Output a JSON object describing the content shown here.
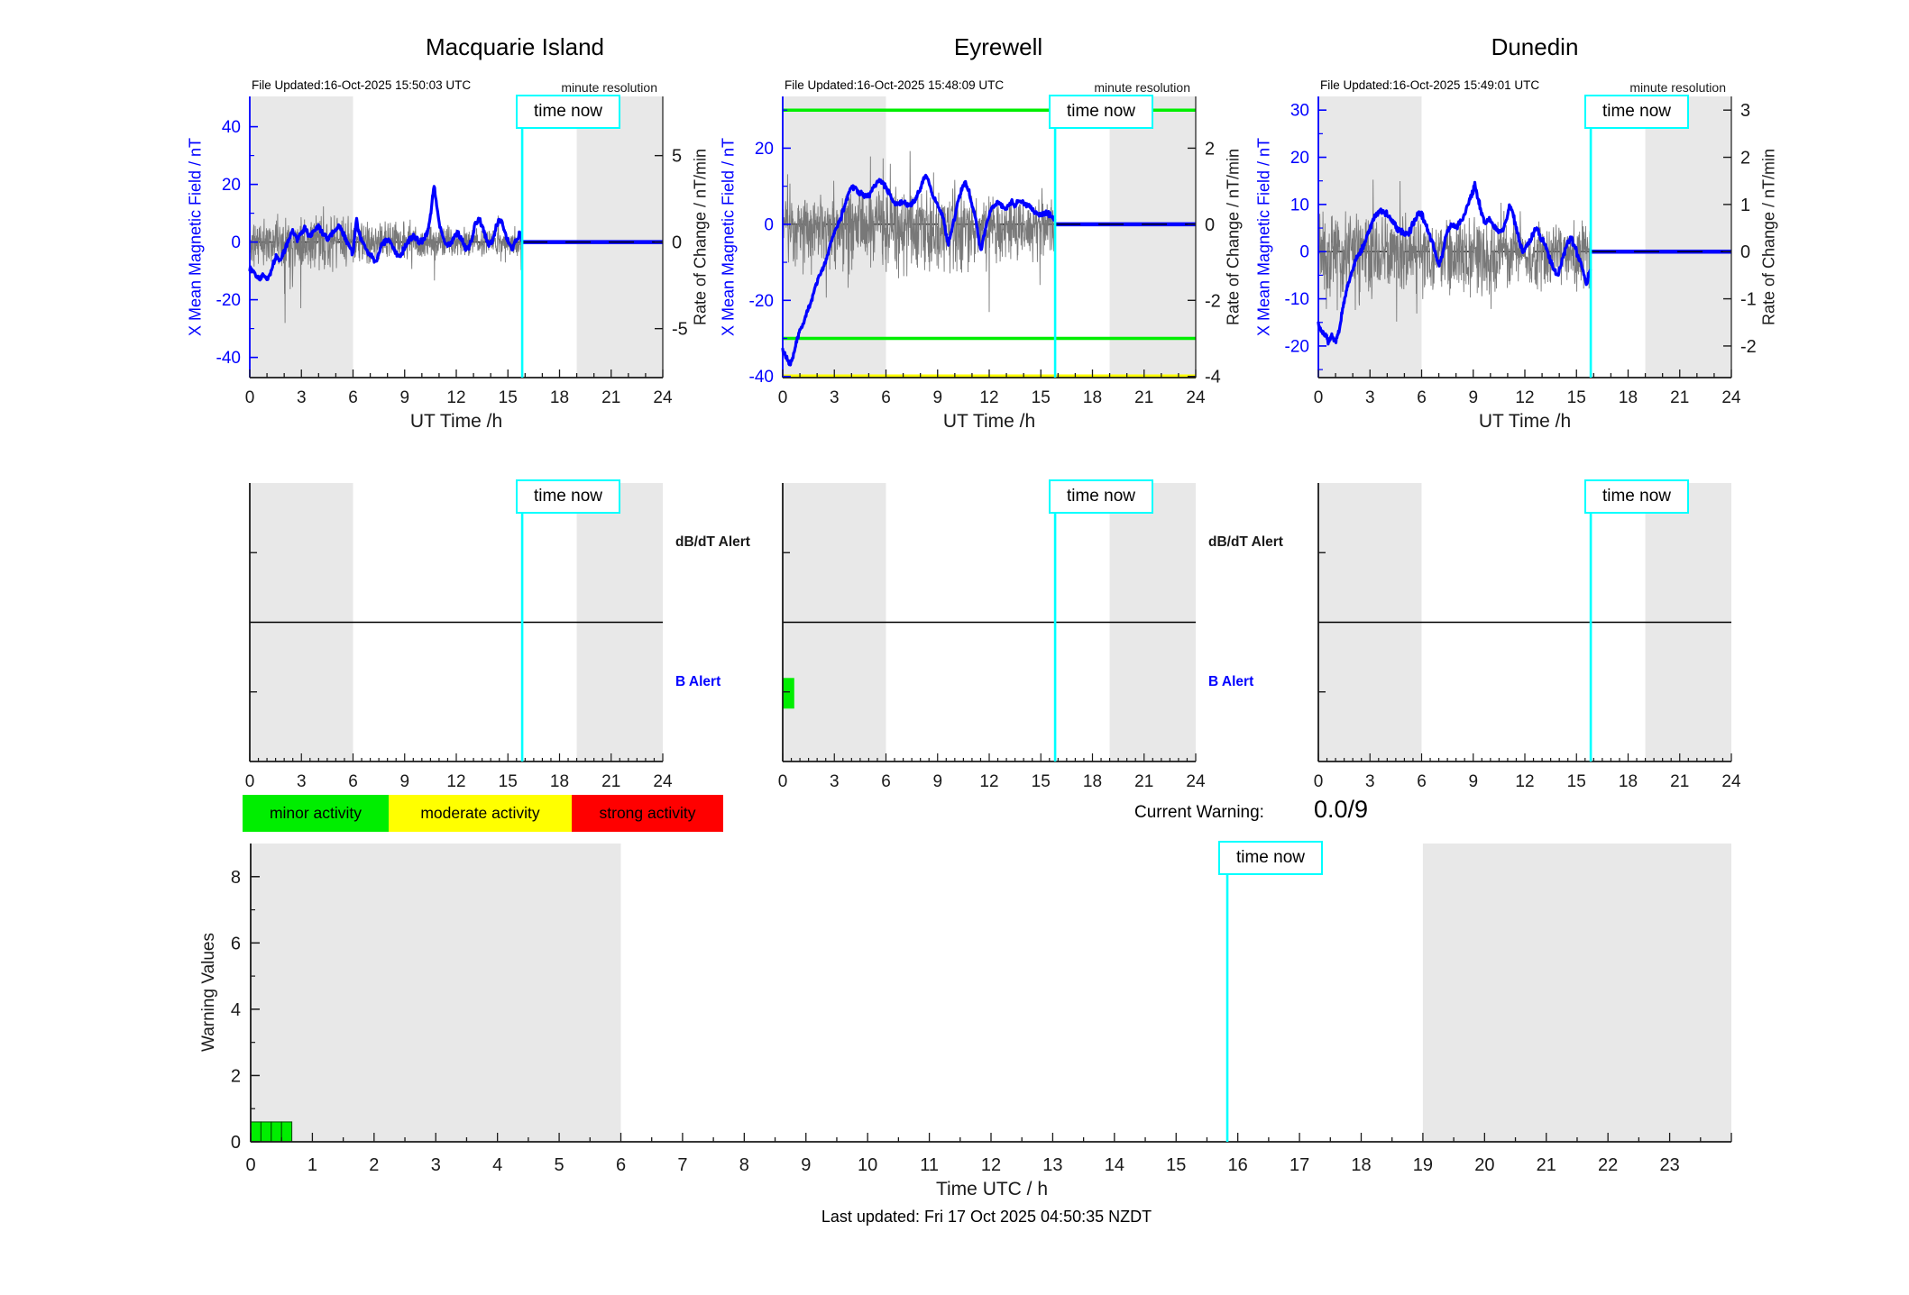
{
  "figure": {
    "time_now_label": "time now",
    "footer": "Last updated: Fri 17 Oct 2025 04:50:35 NZDT",
    "current_warning": {
      "label": "Current Warning:",
      "value": "0.0/9"
    },
    "alert_row": {
      "dbdt_label": "dB/dT Alert",
      "b_label": "B Alert"
    },
    "legend": {
      "items": [
        {
          "label": "minor activity",
          "color": "#00ee00"
        },
        {
          "label": "moderate activity",
          "color": "#ffff00"
        },
        {
          "label": "strong activity",
          "color": "#ff0000"
        }
      ]
    },
    "colors": {
      "night_band": "#e8e8e8",
      "mean_line": "#0000ff",
      "noise_line": "#787878",
      "time_now": "#00ffff",
      "minor": "#00ee00",
      "moderate": "#ffff00",
      "strong": "#ff0000"
    }
  },
  "chart_data": [
    {
      "type": "line",
      "station": "Macquarie Island",
      "title": "Macquarie Island",
      "file_updated": "File Updated:16-Oct-2025 15:50:03 UTC",
      "resolution_label": "minute resolution",
      "xlabel": "UT Time /h",
      "ylabel_left": "X Mean Magnetic Field / nT",
      "ylabel_right": "Rate of Change / nT/min",
      "xlim": [
        0,
        24
      ],
      "xticks": [
        0,
        3,
        6,
        9,
        12,
        15,
        18,
        21,
        24
      ],
      "ylim_left": [
        -47,
        50.5
      ],
      "yticks_left": [
        40,
        20,
        0,
        -20,
        -40
      ],
      "ylim_right": [
        -7.83,
        8.42
      ],
      "yticks_right": [
        5,
        0,
        -5
      ],
      "time_now": 15.83,
      "night_bands": [
        [
          0,
          6
        ],
        [
          19,
          24
        ]
      ],
      "thresholds": [],
      "forecast_value": 0,
      "mean_field_points": [
        [
          0,
          -9
        ],
        [
          0.3,
          -11
        ],
        [
          0.55,
          -12.5
        ],
        [
          0.8,
          -11
        ],
        [
          1.05,
          -13
        ],
        [
          1.3,
          -9
        ],
        [
          1.55,
          -4.5
        ],
        [
          1.75,
          -6.5
        ],
        [
          2,
          -3
        ],
        [
          2.25,
          1
        ],
        [
          2.5,
          4
        ],
        [
          2.75,
          1
        ],
        [
          3,
          3
        ],
        [
          3.2,
          5
        ],
        [
          3.5,
          2
        ],
        [
          3.75,
          4
        ],
        [
          4,
          5
        ],
        [
          4.3,
          3
        ],
        [
          4.5,
          1
        ],
        [
          4.75,
          3
        ],
        [
          5,
          4
        ],
        [
          5.2,
          6
        ],
        [
          5.4,
          3
        ],
        [
          5.6,
          1
        ],
        [
          5.8,
          -2
        ],
        [
          6,
          -4
        ],
        [
          6.1,
          2
        ],
        [
          6.2,
          8
        ],
        [
          6.35,
          3
        ],
        [
          6.5,
          1
        ],
        [
          6.7,
          -2
        ],
        [
          6.9,
          -4
        ],
        [
          7.1,
          -5
        ],
        [
          7.3,
          -7
        ],
        [
          7.5,
          -4
        ],
        [
          7.7,
          -1
        ],
        [
          7.9,
          0.5
        ],
        [
          8.1,
          1
        ],
        [
          8.3,
          -1
        ],
        [
          8.5,
          -4
        ],
        [
          8.7,
          -5
        ],
        [
          8.9,
          -3
        ],
        [
          9.1,
          -1
        ],
        [
          9.3,
          1
        ],
        [
          9.5,
          2
        ],
        [
          9.7,
          1
        ],
        [
          9.9,
          0
        ],
        [
          10.1,
          1
        ],
        [
          10.3,
          3
        ],
        [
          10.5,
          9
        ],
        [
          10.65,
          17
        ],
        [
          10.72,
          20
        ],
        [
          10.85,
          13
        ],
        [
          11,
          7
        ],
        [
          11.15,
          3
        ],
        [
          11.3,
          0
        ],
        [
          11.5,
          -1
        ],
        [
          11.7,
          0
        ],
        [
          11.9,
          2
        ],
        [
          12.1,
          3
        ],
        [
          12.3,
          1
        ],
        [
          12.5,
          -2
        ],
        [
          12.7,
          -2
        ],
        [
          12.9,
          1
        ],
        [
          13.1,
          6
        ],
        [
          13.3,
          8
        ],
        [
          13.5,
          6
        ],
        [
          13.7,
          2
        ],
        [
          13.9,
          -1
        ],
        [
          14.1,
          0
        ],
        [
          14.3,
          5
        ],
        [
          14.5,
          8
        ],
        [
          14.7,
          6
        ],
        [
          14.9,
          2
        ],
        [
          15.1,
          -1
        ],
        [
          15.3,
          -2
        ],
        [
          15.5,
          1
        ],
        [
          15.7,
          3
        ],
        [
          15.83,
          0
        ]
      ],
      "mean_jitter": 1.2,
      "noise": {
        "seed": 11,
        "spike_p": 0.05,
        "spike_mult": 2.6,
        "neg_gain": 1.05,
        "segments": [
          [
            0,
            2,
            1.5
          ],
          [
            2,
            6,
            1.8
          ],
          [
            6,
            9,
            1.3
          ],
          [
            9,
            13,
            1.05
          ],
          [
            13,
            15.83,
            0.85
          ]
        ]
      }
    },
    {
      "type": "line",
      "station": "Eyrewell",
      "title": "Eyrewell",
      "file_updated": "File Updated:16-Oct-2025 15:48:09 UTC",
      "resolution_label": "minute resolution",
      "xlabel": "UT Time /h",
      "ylabel_left": "X Mean Magnetic Field / nT",
      "ylabel_right": "Rate of Change / nT/min",
      "xlim": [
        0,
        24
      ],
      "xticks": [
        0,
        3,
        6,
        9,
        12,
        15,
        18,
        21,
        24
      ],
      "ylim_left": [
        -40.3,
        33.6
      ],
      "yticks_left": [
        20,
        0,
        -20,
        -40
      ],
      "ylim_right": [
        -4.03,
        3.36
      ],
      "yticks_right": [
        2,
        0,
        -2,
        -4
      ],
      "time_now": 15.83,
      "night_bands": [
        [
          0,
          6
        ],
        [
          19,
          24
        ]
      ],
      "thresholds": [
        {
          "value": 30,
          "color": "#00ee00",
          "width": 3.5
        },
        {
          "value": -30,
          "color": "#00ee00",
          "width": 3.5
        },
        {
          "value": -40,
          "color": "#ffff00",
          "width": 4.5
        }
      ],
      "forecast_value": 0,
      "mean_field_points": [
        [
          0,
          -33
        ],
        [
          0.2,
          -35
        ],
        [
          0.4,
          -37
        ],
        [
          0.6,
          -35
        ],
        [
          0.8,
          -31
        ],
        [
          1,
          -28
        ],
        [
          1.2,
          -26
        ],
        [
          1.4,
          -23
        ],
        [
          1.6,
          -21
        ],
        [
          1.8,
          -18
        ],
        [
          2,
          -15
        ],
        [
          2.2,
          -13
        ],
        [
          2.4,
          -11
        ],
        [
          2.6,
          -8
        ],
        [
          2.8,
          -5
        ],
        [
          3,
          -2
        ],
        [
          3.2,
          0
        ],
        [
          3.4,
          2
        ],
        [
          3.6,
          5
        ],
        [
          3.8,
          8
        ],
        [
          4,
          10
        ],
        [
          4.2,
          9.5
        ],
        [
          4.4,
          8.5
        ],
        [
          4.6,
          8
        ],
        [
          4.8,
          7.5
        ],
        [
          5,
          7.5
        ],
        [
          5.2,
          9
        ],
        [
          5.4,
          10.5
        ],
        [
          5.6,
          11.5
        ],
        [
          5.8,
          11
        ],
        [
          6,
          9.5
        ],
        [
          6.2,
          8
        ],
        [
          6.4,
          6
        ],
        [
          6.6,
          5
        ],
        [
          6.8,
          5.5
        ],
        [
          7,
          6
        ],
        [
          7.2,
          5.5
        ],
        [
          7.4,
          5
        ],
        [
          7.6,
          6
        ],
        [
          7.8,
          7.5
        ],
        [
          8,
          9.5
        ],
        [
          8.2,
          12
        ],
        [
          8.35,
          13
        ],
        [
          8.5,
          11
        ],
        [
          8.7,
          8
        ],
        [
          8.9,
          6
        ],
        [
          9.1,
          4
        ],
        [
          9.3,
          2
        ],
        [
          9.5,
          -3
        ],
        [
          9.62,
          -5
        ],
        [
          9.8,
          -2
        ],
        [
          10,
          2
        ],
        [
          10.2,
          6
        ],
        [
          10.4,
          9.5
        ],
        [
          10.6,
          11
        ],
        [
          10.8,
          9
        ],
        [
          11,
          5
        ],
        [
          11.2,
          2
        ],
        [
          11.38,
          -4
        ],
        [
          11.5,
          -7
        ],
        [
          11.7,
          -3
        ],
        [
          11.9,
          1
        ],
        [
          12.1,
          4
        ],
        [
          12.3,
          5
        ],
        [
          12.5,
          6
        ],
        [
          12.7,
          5
        ],
        [
          12.9,
          4
        ],
        [
          13.1,
          5
        ],
        [
          13.3,
          6
        ],
        [
          13.5,
          5
        ],
        [
          13.7,
          6
        ],
        [
          13.9,
          6
        ],
        [
          14.1,
          5
        ],
        [
          14.3,
          5
        ],
        [
          14.5,
          4
        ],
        [
          14.7,
          3
        ],
        [
          14.9,
          2.5
        ],
        [
          15.1,
          2.5
        ],
        [
          15.3,
          3
        ],
        [
          15.5,
          2.5
        ],
        [
          15.7,
          2
        ],
        [
          15.83,
          1
        ]
      ],
      "mean_jitter": 0.8,
      "noise": {
        "seed": 23,
        "spike_p": 0.05,
        "spike_mult": 2.3,
        "neg_gain": 1.5,
        "segments": [
          [
            0,
            3,
            0.85
          ],
          [
            3,
            6,
            0.95
          ],
          [
            6,
            9,
            1.05
          ],
          [
            9,
            12,
            0.9
          ],
          [
            12,
            15.83,
            0.7
          ]
        ]
      }
    },
    {
      "type": "line",
      "station": "Dunedin",
      "title": "Dunedin",
      "file_updated": "File Updated:16-Oct-2025 15:49:01 UTC",
      "resolution_label": "minute resolution",
      "xlabel": "UT Time /h",
      "ylabel_left": "X Mean Magnetic Field / nT",
      "ylabel_right": "Rate of Change / nT/min",
      "xlim": [
        0,
        24
      ],
      "xticks": [
        0,
        3,
        6,
        9,
        12,
        15,
        18,
        21,
        24
      ],
      "ylim_left": [
        -26.7,
        32.9
      ],
      "yticks_left": [
        30,
        20,
        10,
        0,
        -10,
        -20
      ],
      "ylim_right": [
        -2.67,
        3.29
      ],
      "yticks_right": [
        3,
        2,
        1,
        0,
        -1,
        -2
      ],
      "time_now": 15.83,
      "night_bands": [
        [
          0,
          6
        ],
        [
          19,
          24
        ]
      ],
      "thresholds": [],
      "forecast_value": 0,
      "mean_field_points": [
        [
          0,
          -15.5
        ],
        [
          0.2,
          -17
        ],
        [
          0.4,
          -18
        ],
        [
          0.6,
          -19
        ],
        [
          0.8,
          -18
        ],
        [
          1,
          -19
        ],
        [
          1.2,
          -17
        ],
        [
          1.4,
          -12
        ],
        [
          1.6,
          -9
        ],
        [
          1.8,
          -6
        ],
        [
          2,
          -4
        ],
        [
          2.2,
          -1.5
        ],
        [
          2.4,
          -0.5
        ],
        [
          2.6,
          1
        ],
        [
          2.8,
          3
        ],
        [
          3,
          5
        ],
        [
          3.2,
          7
        ],
        [
          3.4,
          8
        ],
        [
          3.6,
          9
        ],
        [
          3.8,
          8.5
        ],
        [
          4,
          8
        ],
        [
          4.2,
          7
        ],
        [
          4.4,
          6
        ],
        [
          4.6,
          5
        ],
        [
          4.8,
          4.5
        ],
        [
          5,
          4
        ],
        [
          5.2,
          3.5
        ],
        [
          5.4,
          5
        ],
        [
          5.6,
          7
        ],
        [
          5.8,
          8
        ],
        [
          6,
          8
        ],
        [
          6.2,
          6
        ],
        [
          6.4,
          4
        ],
        [
          6.6,
          2
        ],
        [
          6.8,
          0
        ],
        [
          7,
          -3
        ],
        [
          7.2,
          -1
        ],
        [
          7.4,
          3
        ],
        [
          7.6,
          5
        ],
        [
          7.8,
          6
        ],
        [
          8,
          5
        ],
        [
          8.2,
          6
        ],
        [
          8.4,
          7
        ],
        [
          8.6,
          9
        ],
        [
          8.8,
          11
        ],
        [
          9,
          13
        ],
        [
          9.1,
          14
        ],
        [
          9.3,
          11
        ],
        [
          9.5,
          8
        ],
        [
          9.7,
          6
        ],
        [
          9.9,
          7
        ],
        [
          10.1,
          6
        ],
        [
          10.3,
          5
        ],
        [
          10.5,
          4
        ],
        [
          10.7,
          4.5
        ],
        [
          10.9,
          6
        ],
        [
          11.1,
          10
        ],
        [
          11.3,
          8
        ],
        [
          11.5,
          5
        ],
        [
          11.7,
          2
        ],
        [
          11.9,
          0
        ],
        [
          12.1,
          1
        ],
        [
          12.3,
          2
        ],
        [
          12.5,
          4
        ],
        [
          12.7,
          5
        ],
        [
          12.9,
          3
        ],
        [
          13.1,
          2
        ],
        [
          13.3,
          0
        ],
        [
          13.5,
          -2
        ],
        [
          13.7,
          -4
        ],
        [
          13.9,
          -5
        ],
        [
          14.1,
          -3
        ],
        [
          14.3,
          0
        ],
        [
          14.5,
          2
        ],
        [
          14.7,
          3
        ],
        [
          14.9,
          1
        ],
        [
          15.1,
          -1
        ],
        [
          15.3,
          -3
        ],
        [
          15.5,
          -6
        ],
        [
          15.6,
          -7
        ],
        [
          15.7,
          -5
        ],
        [
          15.83,
          -4
        ]
      ],
      "mean_jitter": 0.8,
      "noise": {
        "seed": 37,
        "spike_p": 0.05,
        "spike_mult": 2.3,
        "neg_gain": 1.35,
        "segments": [
          [
            0,
            3,
            0.95
          ],
          [
            3,
            6,
            0.85
          ],
          [
            6,
            10,
            0.8
          ],
          [
            10,
            15.83,
            0.7
          ]
        ]
      }
    },
    {
      "type": "alert-timeline",
      "xlim": [
        0,
        24
      ],
      "xticks": [
        0,
        3,
        6,
        9,
        12,
        15,
        18,
        21,
        24
      ],
      "time_now": 15.83,
      "night_bands": [
        [
          0,
          6
        ],
        [
          19,
          24
        ]
      ],
      "stations": [
        {
          "name": "Macquarie Island",
          "dbdt_alert_bars": [],
          "b_alert_bars": []
        },
        {
          "name": "Eyrewell",
          "dbdt_alert_bars": [],
          "b_alert_bars": [
            {
              "from": 0,
              "to": 0.67,
              "level": "minor activity",
              "color": "#00ee00"
            }
          ]
        },
        {
          "name": "Dunedin",
          "dbdt_alert_bars": [],
          "b_alert_bars": []
        }
      ]
    },
    {
      "type": "bar",
      "ylabel": "Warning Values",
      "xlabel": "Time UTC / h",
      "ylim": [
        0,
        9
      ],
      "yticks": [
        0,
        2,
        4,
        6,
        8
      ],
      "xlim": [
        0,
        24
      ],
      "xticks": [
        0,
        1,
        2,
        3,
        4,
        5,
        6,
        7,
        8,
        9,
        10,
        11,
        12,
        13,
        14,
        15,
        16,
        17,
        18,
        19,
        20,
        21,
        22,
        23
      ],
      "time_now": 15.83,
      "night_bands": [
        [
          0,
          6
        ],
        [
          19,
          24
        ]
      ],
      "bar_color": "#00ee00",
      "bars": [
        {
          "x": 0,
          "w": 0.1667,
          "h": 0.6
        },
        {
          "x": 0.1667,
          "w": 0.1667,
          "h": 0.6
        },
        {
          "x": 0.3333,
          "w": 0.1667,
          "h": 0.6
        },
        {
          "x": 0.5,
          "w": 0.1667,
          "h": 0.6
        }
      ]
    }
  ]
}
